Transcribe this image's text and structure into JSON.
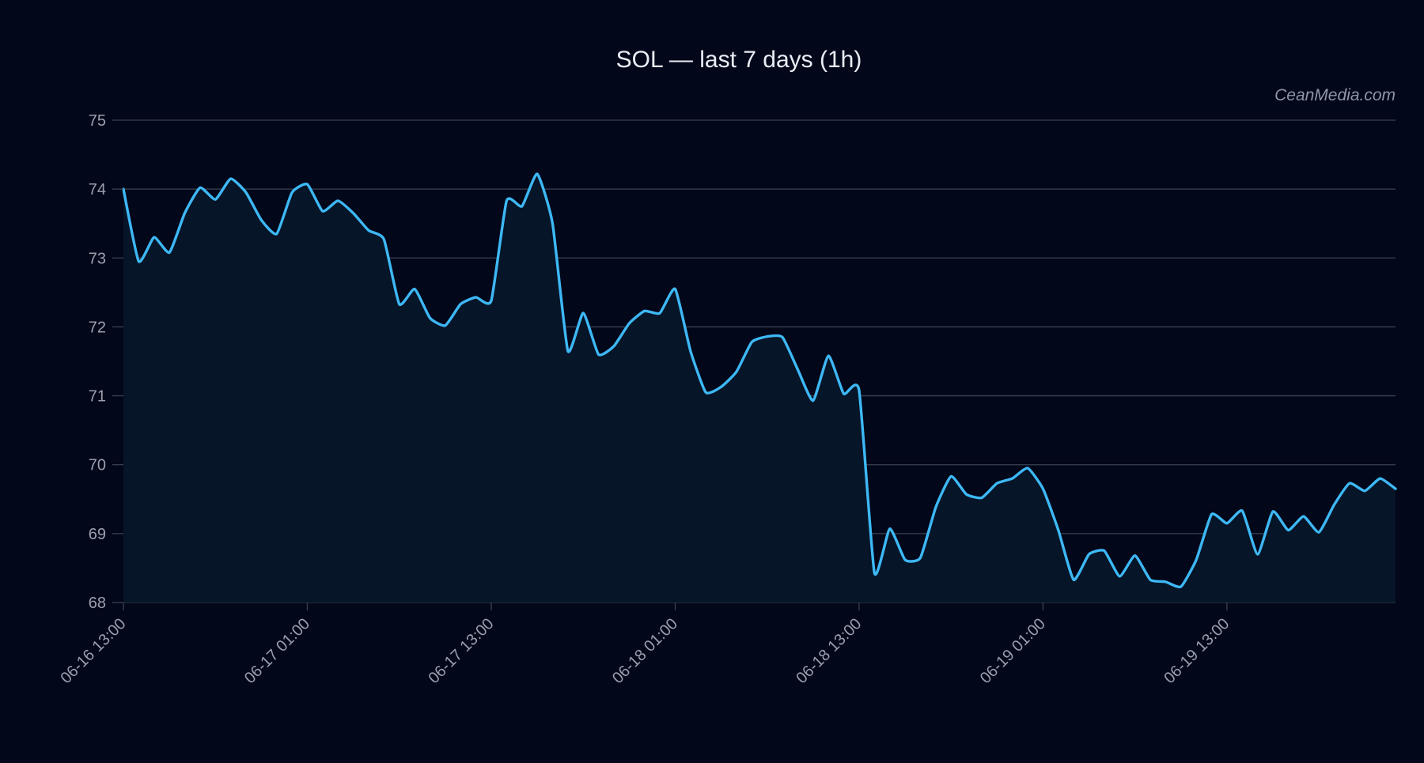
{
  "chart_data": {
    "type": "area",
    "title": "SOL — last 7 days (1h)",
    "watermark": "CeanMedia.com",
    "xlabel": "",
    "ylabel": "",
    "ylim": [
      68,
      75
    ],
    "yticks": [
      68,
      69,
      70,
      71,
      72,
      73,
      74,
      75
    ],
    "x_start": "06-16 13:00",
    "x_interval_hours": 1,
    "xticks": [
      {
        "index": 0,
        "label": "06-16 13:00"
      },
      {
        "index": 12,
        "label": "06-17 01:00"
      },
      {
        "index": 24,
        "label": "06-17 13:00"
      },
      {
        "index": 36,
        "label": "06-18 01:00"
      },
      {
        "index": 48,
        "label": "06-18 13:00"
      },
      {
        "index": 60,
        "label": "06-19 01:00"
      },
      {
        "index": 72,
        "label": "06-19 13:00"
      }
    ],
    "grid": true,
    "colors": {
      "line": "#3db8f5",
      "fill": "#071528",
      "background": "#03071a"
    },
    "series": [
      {
        "values": [
          74.0,
          72.95,
          73.3,
          73.08,
          73.65,
          74.02,
          73.85,
          74.15,
          73.95,
          73.55,
          73.35,
          73.95,
          74.07,
          73.68,
          73.83,
          73.65,
          73.4,
          73.27,
          72.33,
          72.55,
          72.13,
          72.02,
          72.33,
          72.43,
          72.38,
          73.83,
          73.75,
          74.22,
          73.5,
          71.65,
          72.2,
          71.6,
          71.72,
          72.05,
          72.23,
          72.2,
          72.55,
          71.65,
          71.05,
          71.13,
          71.35,
          71.78,
          71.86,
          71.85,
          71.38,
          70.93,
          71.58,
          71.03,
          71.08,
          68.43,
          69.07,
          68.62,
          68.65,
          69.38,
          69.83,
          69.57,
          69.52,
          69.73,
          69.8,
          69.95,
          69.65,
          69.05,
          68.33,
          68.7,
          68.75,
          68.38,
          68.68,
          68.33,
          68.3,
          68.23,
          68.62,
          69.28,
          69.15,
          69.33,
          68.7,
          69.32,
          69.05,
          69.25,
          69.02,
          69.42,
          69.73,
          69.62,
          69.8,
          69.65
        ]
      }
    ]
  }
}
